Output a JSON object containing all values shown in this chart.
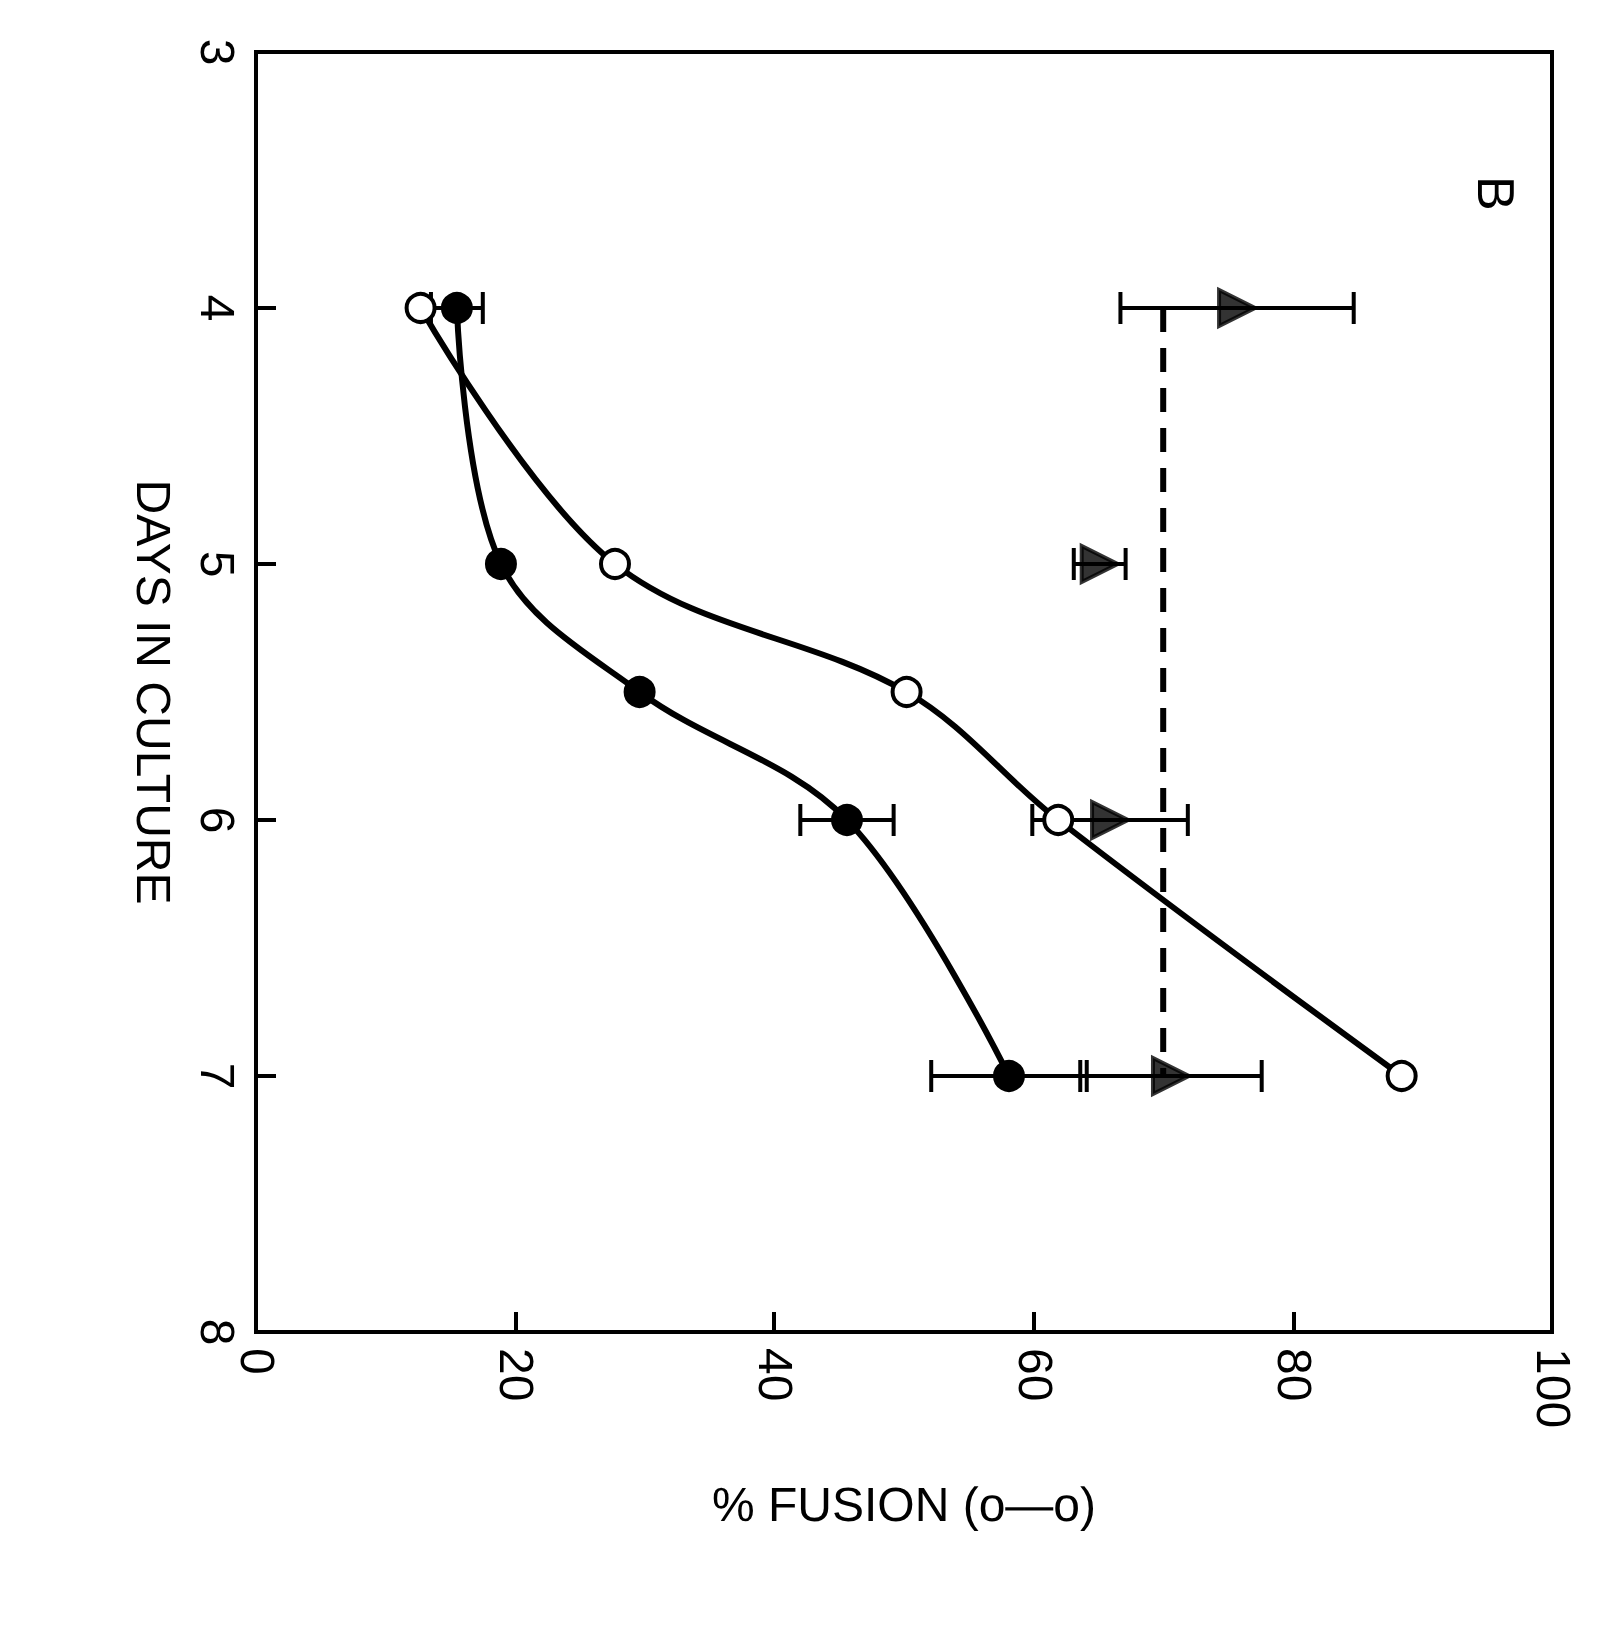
{
  "chart_data": {
    "type": "line",
    "orientation": "horizontal",
    "xlabel": "% FUSION (o—o)",
    "ylabel": "DAYS IN CULTURE",
    "annotations": [
      "B"
    ],
    "xlim": [
      0,
      100
    ],
    "xticks": [
      0,
      20,
      40,
      60,
      80,
      100
    ],
    "ylim": [
      8,
      3
    ],
    "yticks": [
      3,
      4,
      5,
      6,
      7,
      8
    ],
    "series": [
      {
        "color": "#000000",
        "marker": "circle",
        "line_style": "solid",
        "x": [
          4,
          5,
          5.5,
          6,
          7
        ],
        "values": [
          12.7,
          27.7,
          50.2,
          61.9,
          88.4
        ]
      },
      {
        "color": "#000000",
        "marker": "circle",
        "line_style": "solid",
        "x": [
          4,
          5,
          5.5,
          6,
          7
        ],
        "values": [
          15.5,
          18.9,
          29.6,
          45.6,
          58.1
        ],
        "errors": [
          2,
          null,
          null,
          3.6,
          6
        ]
      },
      {
        "type": "scatter",
        "color": "#000000",
        "marker": "triangle",
        "x": [
          4,
          5,
          6,
          7
        ],
        "values": [
          75.7,
          65.1,
          65.9,
          70.6
        ],
        "errors": [
          9,
          2,
          6,
          7
        ]
      }
    ],
    "ref_lines": [
      {
        "axis": "x",
        "value": 70,
        "color": "#000000",
        "line_style": "dashed"
      }
    ]
  }
}
